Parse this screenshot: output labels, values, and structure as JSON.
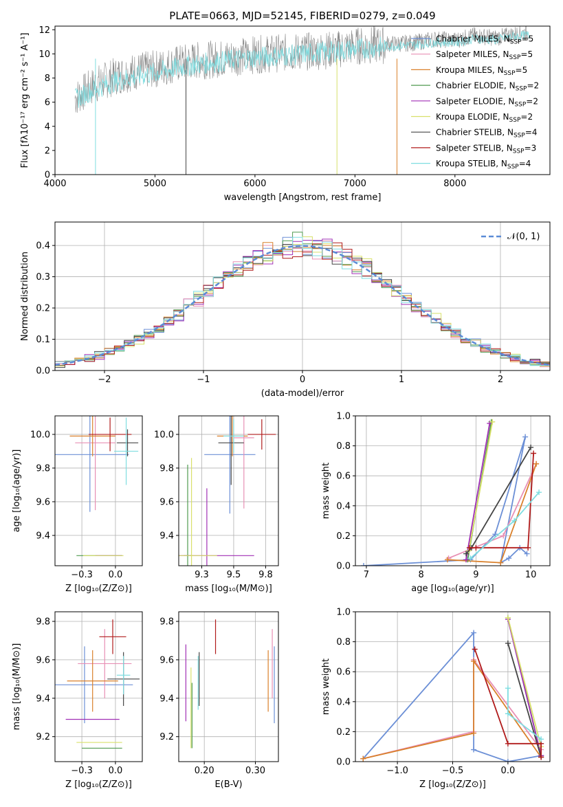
{
  "figure_title": "PLATE=0663, MJD=52145, FIBERID=0279, z=0.049",
  "legend_entries": [
    {
      "label": "Chabrier MILES, N",
      "sub": "SSP",
      "tail": "=5",
      "color": "#6b8fd6"
    },
    {
      "label": "Salpeter MILES, N",
      "sub": "SSP",
      "tail": "=5",
      "color": "#e88fb4"
    },
    {
      "label": "Kroupa MILES, N",
      "sub": "SSP",
      "tail": "=5",
      "color": "#d9802b"
    },
    {
      "label": "Chabrier ELODIE, N",
      "sub": "SSP",
      "tail": "=2",
      "color": "#4f9a4f"
    },
    {
      "label": "Salpeter ELODIE, N",
      "sub": "SSP",
      "tail": "=2",
      "color": "#a02fb5"
    },
    {
      "label": "Kroupa ELODIE, N",
      "sub": "SSP",
      "tail": "=2",
      "color": "#d8e06a"
    },
    {
      "label": "Chabrier STELIB, N",
      "sub": "SSP",
      "tail": "=4",
      "color": "#444444"
    },
    {
      "label": "Salpeter STELIB, N",
      "sub": "SSP",
      "tail": "=3",
      "color": "#b01a1a"
    },
    {
      "label": "Kroupa STELIB, N",
      "sub": "SSP",
      "tail": "=4",
      "color": "#7fdde0"
    }
  ],
  "chart_data": [
    {
      "id": "spectrum",
      "type": "line",
      "xlabel": "wavelength [Angstrom, rest frame]",
      "ylabel": "Flux [fλ10⁻¹⁷ erg cm⁻² s⁻¹ A⁻¹]",
      "xlim": [
        4000,
        8950
      ],
      "ylim": [
        0,
        12.3
      ],
      "xticks": [
        4000,
        5000,
        6000,
        7000,
        8000
      ],
      "yticks": [
        0,
        2,
        4,
        6,
        8,
        10,
        12
      ],
      "grid": false,
      "legend_position": "lower-right",
      "series": [
        {
          "color": "#888888",
          "x": [
            4200,
            4400,
            4600,
            4800,
            5000,
            5200,
            5400,
            5600,
            5800,
            6000,
            6200,
            6400,
            6600,
            6800,
            7000,
            7200,
            7400,
            7600,
            7800,
            8000,
            8200,
            8400,
            8600,
            8750
          ],
          "y": [
            6.5,
            7.6,
            8.3,
            8.7,
            8.9,
            9.3,
            9.6,
            9.7,
            9.9,
            10.1,
            10.2,
            10.3,
            10.4,
            10.5,
            10.8,
            10.9,
            10.9,
            11.0,
            11.3,
            11.2,
            11.6,
            11.4,
            11.7,
            11.9
          ]
        },
        {
          "color": "#7fdde0",
          "x": [
            4200,
            4400,
            4600,
            4800,
            5000,
            5200,
            5400,
            5600,
            5800,
            6000,
            6200,
            6400,
            6600,
            6800,
            7000,
            7200,
            7400,
            7600,
            7800,
            8000,
            8200,
            8400,
            8600,
            8750
          ],
          "y": [
            6.3,
            7.2,
            7.8,
            8.2,
            8.5,
            8.9,
            9.2,
            9.4,
            9.6,
            9.8,
            9.9,
            10.0,
            10.2,
            10.3,
            10.5,
            10.6,
            10.7,
            10.8,
            11.0,
            11.0,
            11.3,
            11.2,
            11.5,
            11.6
          ]
        }
      ],
      "dips": [
        {
          "x": 4405,
          "y_to": 0,
          "color": "#7fdde0"
        },
        {
          "x": 5310,
          "y_to": 0,
          "color": "#444444"
        },
        {
          "x": 6820,
          "y_to": 0,
          "color": "#d8e06a"
        },
        {
          "x": 7420,
          "y_to": 0,
          "color": "#d9802b"
        }
      ]
    },
    {
      "id": "residuals",
      "type": "histogram",
      "xlabel": "(data-model)/error",
      "ylabel": "Normed distribution",
      "xlim": [
        -2.5,
        2.5
      ],
      "ylim": [
        0,
        0.475
      ],
      "xticks": [
        -2,
        -1,
        0,
        1,
        2
      ],
      "yticks": [
        0.0,
        0.1,
        0.2,
        0.3,
        0.4
      ],
      "grid": true,
      "legend_position": "top-right",
      "reference_curve": {
        "label": "𝒩(0, 1)",
        "color": "#5b8bd6",
        "mean": 0,
        "sigma": 1
      }
    },
    {
      "id": "age_vs_Z",
      "type": "errorbar",
      "xlabel": "Z [log₁₀(Z/Z⊙)]",
      "ylabel": "age  [log₁₀(age/yr)]",
      "xlim": [
        -0.45,
        0.2
      ],
      "ylim": [
        9.22,
        10.11
      ],
      "xticks": [
        -0.25,
        0.0
      ],
      "yticks": [
        9.4,
        9.6,
        9.8,
        10.0
      ],
      "grid": true,
      "points": [
        {
          "x": -0.19,
          "y": 9.88,
          "xerr": 0.29,
          "yerr": 0.34,
          "color": "#6b8fd6"
        },
        {
          "x": -0.15,
          "y": 9.95,
          "xerr": 0.15,
          "yerr": 0.4,
          "color": "#e88fb4"
        },
        {
          "x": -0.17,
          "y": 9.99,
          "xerr": 0.17,
          "yerr": 0.12,
          "color": "#d9802b"
        },
        {
          "x": -0.12,
          "y": 9.28,
          "xerr": 0.17,
          "yerr": 0.0,
          "color": "#4f9a4f"
        },
        {
          "x": -0.05,
          "y": 9.28,
          "xerr": 0.1,
          "yerr": 0.0,
          "color": "#a02fb5"
        },
        {
          "x": -0.09,
          "y": 9.28,
          "xerr": 0.15,
          "yerr": 0.0,
          "color": "#d8e06a"
        },
        {
          "x": 0.09,
          "y": 9.95,
          "xerr": 0.08,
          "yerr": 0.08,
          "color": "#444444"
        },
        {
          "x": -0.04,
          "y": 10.0,
          "xerr": 0.16,
          "yerr": 0.1,
          "color": "#b01a1a"
        },
        {
          "x": 0.08,
          "y": 9.9,
          "xerr": 0.09,
          "yerr": 0.2,
          "color": "#7fdde0"
        }
      ]
    },
    {
      "id": "age_vs_mass",
      "type": "errorbar",
      "xlabel": "mass [log₁₀(M/M⊙)]",
      "ylabel": "",
      "xlim": [
        9.07,
        9.85
      ],
      "ylim": [
        9.22,
        10.11
      ],
      "xticks": [
        9.25,
        9.5,
        9.75
      ],
      "yticks": [
        9.4,
        9.6,
        9.8,
        10.0
      ],
      "grid": true,
      "points": [
        {
          "x": 9.47,
          "y": 9.88,
          "xerr": 0.2,
          "yerr": 0.35,
          "color": "#6b8fd6"
        },
        {
          "x": 9.58,
          "y": 9.98,
          "xerr": 0.08,
          "yerr": 0.42,
          "color": "#e88fb4"
        },
        {
          "x": 9.49,
          "y": 9.99,
          "xerr": 0.12,
          "yerr": 0.12,
          "color": "#d9802b"
        },
        {
          "x": 9.14,
          "y": 9.28,
          "xerr": 0.03,
          "yerr": 0.54,
          "color": "#4f9a4f"
        },
        {
          "x": 9.29,
          "y": 9.28,
          "xerr": 0.37,
          "yerr": 0.4,
          "color": "#a02fb5"
        },
        {
          "x": 9.17,
          "y": 9.28,
          "xerr": 0.2,
          "yerr": 0.58,
          "color": "#d8e06a"
        },
        {
          "x": 9.48,
          "y": 9.95,
          "xerr": 0.1,
          "yerr": 0.25,
          "color": "#444444"
        },
        {
          "x": 9.72,
          "y": 10.0,
          "xerr": 0.11,
          "yerr": 0.09,
          "color": "#b01a1a"
        },
        {
          "x": 9.5,
          "y": 9.99,
          "xerr": 0.08,
          "yerr": 0.1,
          "color": "#7fdde0"
        }
      ]
    },
    {
      "id": "mass_weight_vs_age",
      "type": "line",
      "xlabel": "age  [log₁₀(age/yr)]",
      "ylabel": "mass weight",
      "xlim": [
        6.8,
        10.35
      ],
      "ylim": [
        0,
        1
      ],
      "xticks": [
        7,
        8,
        9,
        10
      ],
      "yticks": [
        0.0,
        0.2,
        0.4,
        0.6,
        0.8,
        1.0
      ],
      "grid": true,
      "series": [
        {
          "color": "#6b8fd6",
          "x": [
            6.95,
            8.9,
            9.35,
            9.9,
            9.45,
            9.6,
            9.8,
            9.93
          ],
          "y": [
            0.0,
            0.04,
            0.21,
            0.86,
            0.02,
            0.05,
            0.12,
            0.08
          ]
        },
        {
          "color": "#e88fb4",
          "x": [
            8.5,
            9.5,
            10.1
          ],
          "y": [
            0.05,
            0.2,
            0.68
          ]
        },
        {
          "color": "#d9802b",
          "x": [
            8.48,
            9.45,
            10.1
          ],
          "y": [
            0.04,
            0.02,
            0.68
          ]
        },
        {
          "color": "#4f9a4f",
          "x": [
            8.85,
            9.28
          ],
          "y": [
            0.04,
            0.96
          ]
        },
        {
          "color": "#a02fb5",
          "x": [
            8.82,
            9.25
          ],
          "y": [
            0.04,
            0.95
          ]
        },
        {
          "color": "#d8e06a",
          "x": [
            8.87,
            9.3
          ],
          "y": [
            0.1,
            0.96
          ]
        },
        {
          "color": "#444444",
          "x": [
            8.82,
            8.92,
            10.0
          ],
          "y": [
            0.08,
            0.12,
            0.79
          ]
        },
        {
          "color": "#b01a1a",
          "x": [
            8.88,
            9.0,
            9.95,
            10.05
          ],
          "y": [
            0.12,
            0.12,
            0.12,
            0.75
          ]
        },
        {
          "color": "#7fdde0",
          "x": [
            8.9,
            9.7,
            10.15
          ],
          "y": [
            0.05,
            0.3,
            0.49
          ]
        }
      ]
    },
    {
      "id": "mass_vs_Z",
      "type": "errorbar",
      "xlabel": "Z [log₁₀(Z/Z⊙)]",
      "ylabel": "mass [log₁₀(M/M⊙)]",
      "xlim": [
        -0.45,
        0.2
      ],
      "ylim": [
        9.07,
        9.85
      ],
      "xticks": [
        -0.25,
        0.0
      ],
      "yticks": [
        9.2,
        9.4,
        9.6,
        9.8
      ],
      "grid": true,
      "points": [
        {
          "x": -0.23,
          "y": 9.47,
          "xerr": 0.36,
          "yerr": 0.2,
          "color": "#6b8fd6"
        },
        {
          "x": -0.08,
          "y": 9.58,
          "xerr": 0.2,
          "yerr": 0.18,
          "color": "#e88fb4"
        },
        {
          "x": -0.17,
          "y": 9.49,
          "xerr": 0.19,
          "yerr": 0.16,
          "color": "#d9802b"
        },
        {
          "x": -0.1,
          "y": 9.14,
          "xerr": 0.15,
          "yerr": 0.0,
          "color": "#4f9a4f"
        },
        {
          "x": -0.17,
          "y": 9.29,
          "xerr": 0.2,
          "yerr": 0.0,
          "color": "#a02fb5"
        },
        {
          "x": -0.12,
          "y": 9.17,
          "xerr": 0.17,
          "yerr": 0.0,
          "color": "#d8e06a"
        },
        {
          "x": 0.06,
          "y": 9.5,
          "xerr": 0.12,
          "yerr": 0.14,
          "color": "#444444"
        },
        {
          "x": -0.02,
          "y": 9.72,
          "xerr": 0.1,
          "yerr": 0.09,
          "color": "#b01a1a"
        },
        {
          "x": 0.06,
          "y": 9.52,
          "xerr": 0.05,
          "yerr": 0.1,
          "color": "#7fdde0"
        }
      ]
    },
    {
      "id": "mass_vs_ebv",
      "type": "errorbar",
      "xlabel": "E(B-V)",
      "ylabel": "",
      "xlim": [
        0.15,
        0.345
      ],
      "ylim": [
        9.07,
        9.85
      ],
      "xticks": [
        0.2,
        0.3
      ],
      "yticks": [
        9.2,
        9.4,
        9.6,
        9.8
      ],
      "grid": true,
      "points": [
        {
          "x": 0.337,
          "y": 9.47,
          "xerr": 0,
          "yerr": 0.2,
          "color": "#6b8fd6"
        },
        {
          "x": 0.333,
          "y": 9.58,
          "xerr": 0,
          "yerr": 0.18,
          "color": "#e88fb4"
        },
        {
          "x": 0.325,
          "y": 9.49,
          "xerr": 0,
          "yerr": 0.16,
          "color": "#d9802b"
        },
        {
          "x": 0.176,
          "y": 9.31,
          "xerr": 0,
          "yerr": 0.17,
          "color": "#4f9a4f"
        },
        {
          "x": 0.164,
          "y": 9.48,
          "xerr": 0,
          "yerr": 0.2,
          "color": "#a02fb5"
        },
        {
          "x": 0.174,
          "y": 9.35,
          "xerr": 0,
          "yerr": 0.21,
          "color": "#d8e06a"
        },
        {
          "x": 0.19,
          "y": 9.5,
          "xerr": 0,
          "yerr": 0.14,
          "color": "#444444"
        },
        {
          "x": 0.222,
          "y": 9.72,
          "xerr": 0,
          "yerr": 0.09,
          "color": "#b01a1a"
        },
        {
          "x": 0.188,
          "y": 9.48,
          "xerr": 0,
          "yerr": 0.14,
          "color": "#7fdde0"
        }
      ]
    },
    {
      "id": "mass_weight_vs_Z",
      "type": "line",
      "xlabel": "Z [log₁₀(Z/Z⊙)]",
      "ylabel": "mass weight",
      "xlim": [
        -1.38,
        0.38
      ],
      "ylim": [
        0,
        1
      ],
      "xticks": [
        -1.0,
        -0.5,
        0.0
      ],
      "yticks": [
        0.0,
        0.2,
        0.4,
        0.6,
        0.8,
        1.0
      ],
      "grid": true,
      "series": [
        {
          "color": "#6b8fd6",
          "x": [
            -1.31,
            -0.31,
            -0.31,
            0.0,
            0.3,
            0.3
          ],
          "y": [
            0.02,
            0.86,
            0.08,
            0.0,
            0.04,
            0.12
          ]
        },
        {
          "color": "#e88fb4",
          "x": [
            -1.31,
            -0.31,
            -0.31,
            0.3
          ],
          "y": [
            0.02,
            0.2,
            0.68,
            0.08
          ]
        },
        {
          "color": "#d9802b",
          "x": [
            -1.31,
            -0.31,
            -0.31,
            0.3
          ],
          "y": [
            0.02,
            0.19,
            0.67,
            0.03
          ]
        },
        {
          "color": "#4f9a4f",
          "x": [
            0.0,
            0.3
          ],
          "y": [
            0.96,
            0.04
          ]
        },
        {
          "color": "#a02fb5",
          "x": [
            0.0,
            0.3
          ],
          "y": [
            0.95,
            0.04
          ]
        },
        {
          "color": "#d8e06a",
          "x": [
            0.0,
            0.3
          ],
          "y": [
            0.96,
            0.1
          ]
        },
        {
          "color": "#444444",
          "x": [
            0.0,
            0.3
          ],
          "y": [
            0.79,
            0.03
          ]
        },
        {
          "color": "#b01a1a",
          "x": [
            -0.3,
            0.0,
            0.3,
            0.3
          ],
          "y": [
            0.75,
            0.12,
            0.12,
            0.03
          ]
        },
        {
          "color": "#7fdde0",
          "x": [
            0.0,
            0.0,
            0.3
          ],
          "y": [
            0.49,
            0.32,
            0.15
          ]
        }
      ]
    }
  ]
}
